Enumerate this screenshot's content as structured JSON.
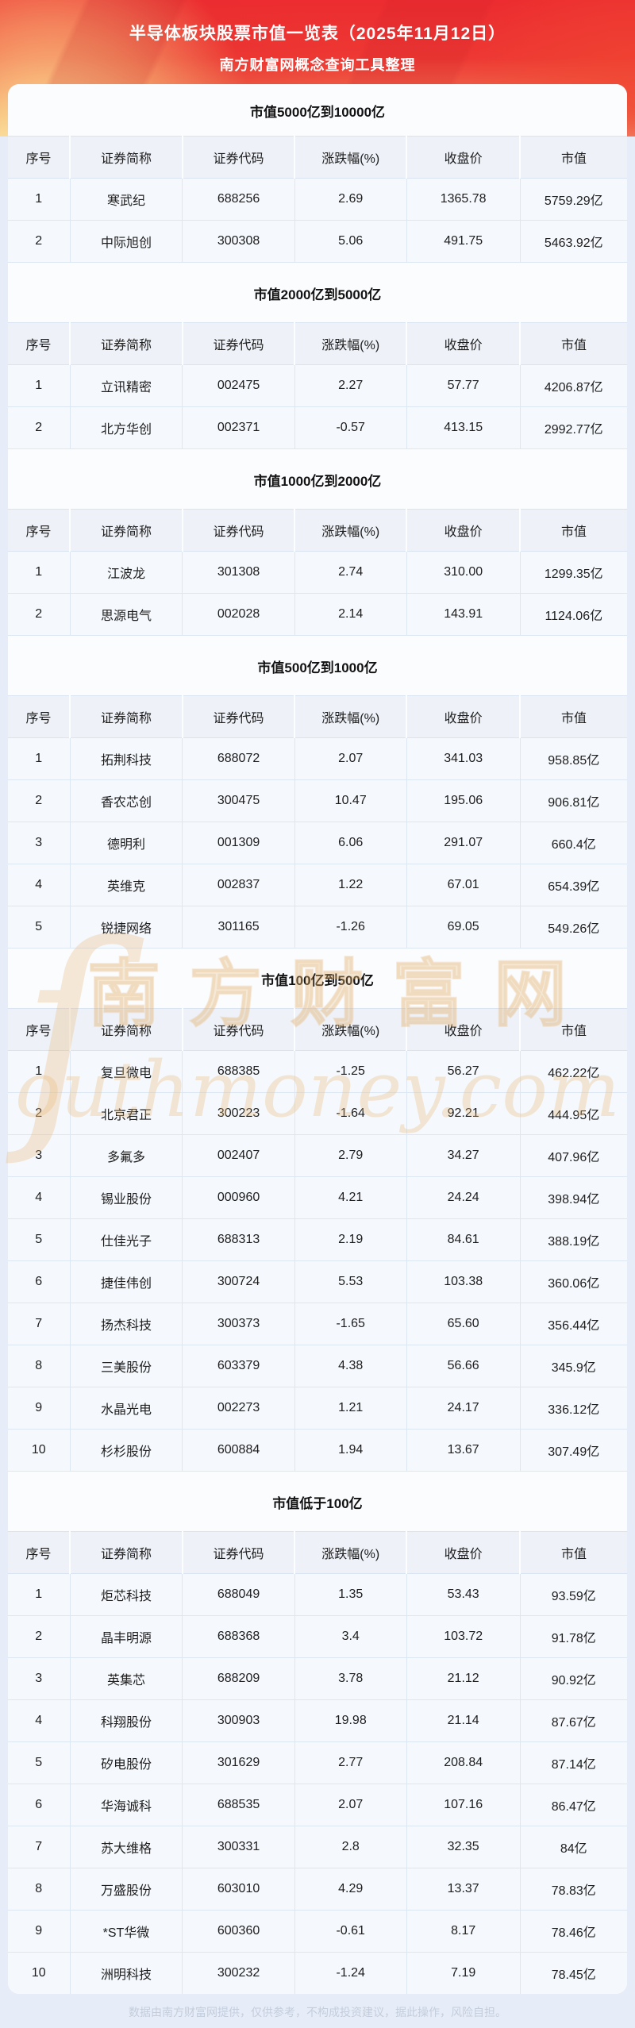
{
  "banner": {
    "title": "半导体板块股票市值一览表（2025年11月12日）",
    "subtitle": "南方财富网概念查询工具整理"
  },
  "table": {
    "columns": [
      "序号",
      "证券简称",
      "证券代码",
      "涨跌幅(%)",
      "收盘价",
      "市值"
    ],
    "column_keys": [
      "rank",
      "stock-name",
      "stock-code",
      "change-pct",
      "close-price",
      "market-cap"
    ]
  },
  "sections": [
    {
      "title": "市值5000亿到10000亿",
      "rows": [
        [
          "1",
          "寒武纪",
          "688256",
          "2.69",
          "1365.78",
          "5759.29亿"
        ],
        [
          "2",
          "中际旭创",
          "300308",
          "5.06",
          "491.75",
          "5463.92亿"
        ]
      ]
    },
    {
      "title": "市值2000亿到5000亿",
      "rows": [
        [
          "1",
          "立讯精密",
          "002475",
          "2.27",
          "57.77",
          "4206.87亿"
        ],
        [
          "2",
          "北方华创",
          "002371",
          "-0.57",
          "413.15",
          "2992.77亿"
        ]
      ]
    },
    {
      "title": "市值1000亿到2000亿",
      "rows": [
        [
          "1",
          "江波龙",
          "301308",
          "2.74",
          "310.00",
          "1299.35亿"
        ],
        [
          "2",
          "思源电气",
          "002028",
          "2.14",
          "143.91",
          "1124.06亿"
        ]
      ]
    },
    {
      "title": "市值500亿到1000亿",
      "rows": [
        [
          "1",
          "拓荆科技",
          "688072",
          "2.07",
          "341.03",
          "958.85亿"
        ],
        [
          "2",
          "香农芯创",
          "300475",
          "10.47",
          "195.06",
          "906.81亿"
        ],
        [
          "3",
          "德明利",
          "001309",
          "6.06",
          "291.07",
          "660.4亿"
        ],
        [
          "4",
          "英维克",
          "002837",
          "1.22",
          "67.01",
          "654.39亿"
        ],
        [
          "5",
          "锐捷网络",
          "301165",
          "-1.26",
          "69.05",
          "549.26亿"
        ]
      ]
    },
    {
      "title": "市值100亿到500亿",
      "rows": [
        [
          "1",
          "复旦微电",
          "688385",
          "-1.25",
          "56.27",
          "462.22亿"
        ],
        [
          "2",
          "北京君正",
          "300223",
          "-1.64",
          "92.21",
          "444.95亿"
        ],
        [
          "3",
          "多氟多",
          "002407",
          "2.79",
          "34.27",
          "407.96亿"
        ],
        [
          "4",
          "锡业股份",
          "000960",
          "4.21",
          "24.24",
          "398.94亿"
        ],
        [
          "5",
          "仕佳光子",
          "688313",
          "2.19",
          "84.61",
          "388.19亿"
        ],
        [
          "6",
          "捷佳伟创",
          "300724",
          "5.53",
          "103.38",
          "360.06亿"
        ],
        [
          "7",
          "扬杰科技",
          "300373",
          "-1.65",
          "65.60",
          "356.44亿"
        ],
        [
          "8",
          "三美股份",
          "603379",
          "4.38",
          "56.66",
          "345.9亿"
        ],
        [
          "9",
          "水晶光电",
          "002273",
          "1.21",
          "24.17",
          "336.12亿"
        ],
        [
          "10",
          "杉杉股份",
          "600884",
          "1.94",
          "13.67",
          "307.49亿"
        ]
      ]
    },
    {
      "title": "市值低于100亿",
      "rows": [
        [
          "1",
          "炬芯科技",
          "688049",
          "1.35",
          "53.43",
          "93.59亿"
        ],
        [
          "2",
          "晶丰明源",
          "688368",
          "3.4",
          "103.72",
          "91.78亿"
        ],
        [
          "3",
          "英集芯",
          "688209",
          "3.78",
          "21.12",
          "90.92亿"
        ],
        [
          "4",
          "科翔股份",
          "300903",
          "19.98",
          "21.14",
          "87.67亿"
        ],
        [
          "5",
          "矽电股份",
          "301629",
          "2.77",
          "208.84",
          "87.14亿"
        ],
        [
          "6",
          "华海诚科",
          "688535",
          "2.07",
          "107.16",
          "86.47亿"
        ],
        [
          "7",
          "苏大维格",
          "300331",
          "2.8",
          "32.35",
          "84亿"
        ],
        [
          "8",
          "万盛股份",
          "603010",
          "4.29",
          "13.37",
          "78.83亿"
        ],
        [
          "9",
          "*ST华微",
          "600360",
          "-0.61",
          "8.17",
          "78.46亿"
        ],
        [
          "10",
          "洲明科技",
          "300232",
          "-1.24",
          "7.19",
          "78.45亿"
        ]
      ]
    }
  ],
  "watermark": {
    "script_letter": "ſ",
    "line1": "南方财富网",
    "line2": "outhmoney.com"
  },
  "footer": {
    "disclaimer": "数据由南方财富网提供，仅供参考，不构成投资建议，据此操作，风险自担。"
  },
  "colors": {
    "banner_red": "#ec2c30",
    "banner_cream": "#f4dcb4",
    "page_bg": "#e7edf8",
    "card_bg": "#fbfcfe",
    "header_row_bg": "#eef2f8",
    "cell_bg": "#f5f8fc",
    "grid_border": "#dde7f4",
    "text": "#1d1d1d",
    "footer_text": "#c3cddc",
    "watermark": "#e2ac68"
  }
}
